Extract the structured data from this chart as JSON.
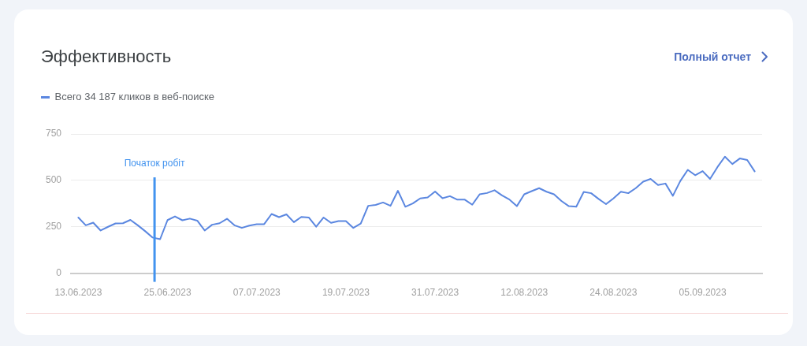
{
  "chart_data": {
    "type": "line",
    "title": "Эффективность",
    "annotations": [
      "Полный отчет"
    ],
    "x": [
      "2023-06-13",
      "2023-06-14",
      "2023-06-15",
      "2023-06-16",
      "2023-06-17",
      "2023-06-18",
      "2023-06-19",
      "2023-06-20",
      "2023-06-21",
      "2023-06-22",
      "2023-06-23",
      "2023-06-24",
      "2023-06-25",
      "2023-06-26",
      "2023-06-27",
      "2023-06-28",
      "2023-06-29",
      "2023-06-30",
      "2023-07-01",
      "2023-07-02",
      "2023-07-03",
      "2023-07-04",
      "2023-07-05",
      "2023-07-06",
      "2023-07-07",
      "2023-07-08",
      "2023-07-09",
      "2023-07-10",
      "2023-07-11",
      "2023-07-12",
      "2023-07-13",
      "2023-07-14",
      "2023-07-15",
      "2023-07-16",
      "2023-07-17",
      "2023-07-18",
      "2023-07-19",
      "2023-07-20",
      "2023-07-21",
      "2023-07-22",
      "2023-07-23",
      "2023-07-24",
      "2023-07-25",
      "2023-07-26",
      "2023-07-27",
      "2023-07-28",
      "2023-07-29",
      "2023-07-30",
      "2023-07-31",
      "2023-08-01",
      "2023-08-02",
      "2023-08-03",
      "2023-08-04",
      "2023-08-05",
      "2023-08-06",
      "2023-08-07",
      "2023-08-08",
      "2023-08-09",
      "2023-08-10",
      "2023-08-11",
      "2023-08-12",
      "2023-08-13",
      "2023-08-14",
      "2023-08-15",
      "2023-08-16",
      "2023-08-17",
      "2023-08-18",
      "2023-08-19",
      "2023-08-20",
      "2023-08-21",
      "2023-08-22",
      "2023-08-23",
      "2023-08-24",
      "2023-08-25",
      "2023-08-26",
      "2023-08-27",
      "2023-08-28",
      "2023-08-29",
      "2023-08-30",
      "2023-08-31",
      "2023-09-01",
      "2023-09-02",
      "2023-09-03",
      "2023-09-04",
      "2023-09-05",
      "2023-09-06",
      "2023-09-07",
      "2023-09-08",
      "2023-09-09",
      "2023-09-10",
      "2023-09-11",
      "2023-09-12"
    ],
    "series": [
      {
        "name": "Всего 34 187 кликов в веб-поиске",
        "color": "#5b87e0",
        "values": [
          300,
          258,
          272,
          230,
          250,
          268,
          269,
          287,
          258,
          226,
          192,
          183,
          286,
          306,
          285,
          294,
          283,
          230,
          261,
          269,
          293,
          258,
          244,
          256,
          264,
          264,
          319,
          302,
          317,
          275,
          303,
          300,
          250,
          300,
          271,
          281,
          281,
          244,
          267,
          363,
          368,
          381,
          363,
          444,
          358,
          376,
          403,
          408,
          440,
          404,
          415,
          396,
          396,
          369,
          425,
          432,
          447,
          419,
          397,
          361,
          425,
          442,
          458,
          439,
          425,
          389,
          361,
          358,
          438,
          431,
          400,
          372,
          403,
          439,
          431,
          458,
          493,
          508,
          475,
          483,
          417,
          497,
          557,
          528,
          550,
          508,
          572,
          628,
          588,
          618,
          610,
          549
        ]
      }
    ],
    "xlim": [
      "2023-06-12",
      "2023-09-13"
    ],
    "xticks": [
      {
        "value": "2023-06-13",
        "label": "13.06.2023"
      },
      {
        "value": "2023-06-25",
        "label": "25.06.2023"
      },
      {
        "value": "2023-07-07",
        "label": "07.07.2023"
      },
      {
        "value": "2023-07-19",
        "label": "19.07.2023"
      },
      {
        "value": "2023-07-31",
        "label": "31.07.2023"
      },
      {
        "value": "2023-08-12",
        "label": "12.08.2023"
      },
      {
        "value": "2023-08-24",
        "label": "24.08.2023"
      },
      {
        "value": "2023-09-05",
        "label": "05.09.2023"
      }
    ],
    "ylim": [
      0,
      750
    ],
    "yticks": [
      0,
      250,
      500,
      750
    ],
    "grid": "y",
    "legend": "top left",
    "marker": "none",
    "ref_lines": [
      {
        "axis": "x",
        "value": "2023-06-23T06:00",
        "label": "Початок робіт",
        "color": "#4293ef"
      }
    ]
  }
}
